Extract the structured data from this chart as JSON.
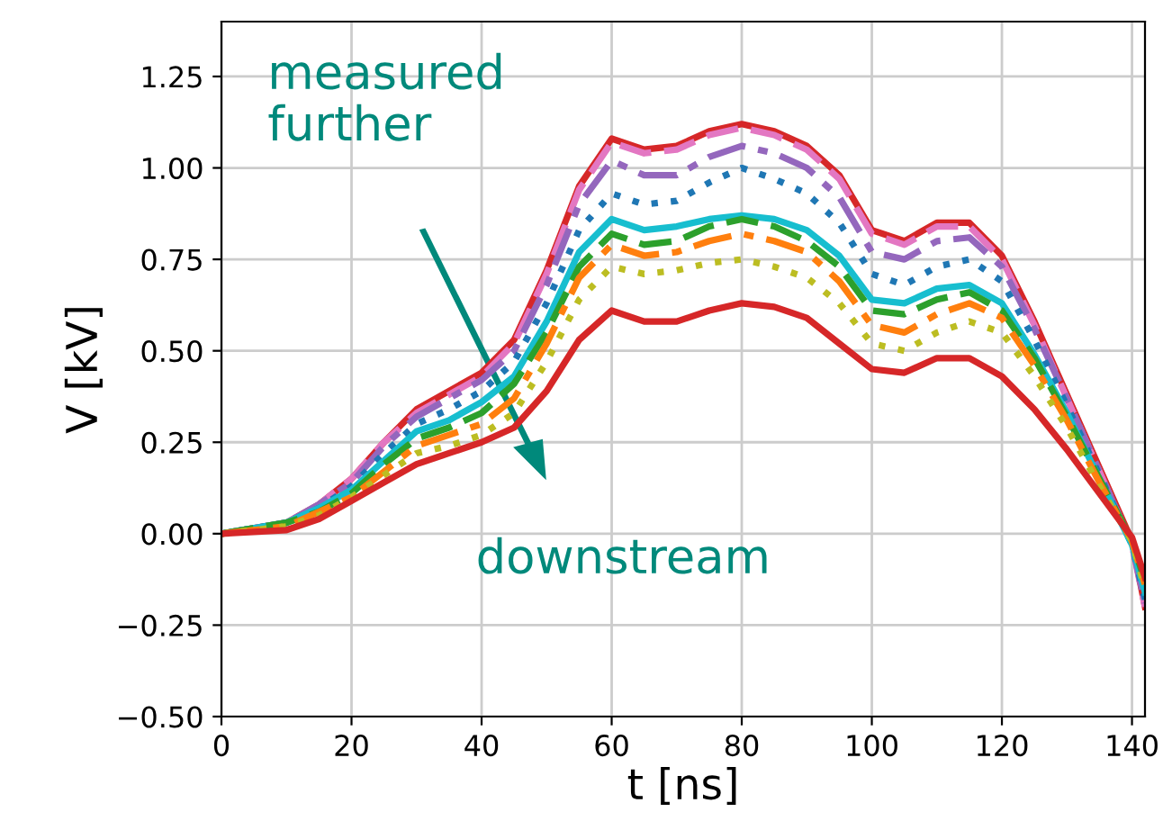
{
  "chart_data": {
    "type": "line",
    "xlabel": "t [ns]",
    "ylabel": "V [kV]",
    "x": [
      0,
      10,
      15,
      20,
      25,
      30,
      35,
      40,
      45,
      50,
      55,
      60,
      65,
      70,
      75,
      80,
      85,
      90,
      95,
      100,
      105,
      110,
      115,
      120,
      125,
      130,
      135,
      140,
      142
    ],
    "xlim": [
      0,
      142
    ],
    "xticks": [
      0,
      20,
      40,
      60,
      80,
      100,
      120,
      140
    ],
    "ylim": [
      -0.5,
      1.4
    ],
    "yticks": [
      {
        "value": -0.5,
        "label": "−0.50"
      },
      {
        "value": -0.25,
        "label": "−0.25"
      },
      {
        "value": 0,
        "label": "0.00"
      },
      {
        "value": 0.25,
        "label": "0.25"
      },
      {
        "value": 0.5,
        "label": "0.50"
      },
      {
        "value": 0.75,
        "label": "0.75"
      },
      {
        "value": 1.0,
        "label": "1.00"
      },
      {
        "value": 1.25,
        "label": "1.25"
      }
    ],
    "grid": true,
    "legend": false,
    "marker": "none",
    "annotations": [
      "measured\nfurther",
      "downstream"
    ],
    "series": [
      {
        "color": "#d62728",
        "line_style": "solid",
        "values": [
          0,
          0.03,
          0.08,
          0.15,
          0.25,
          0.34,
          0.39,
          0.44,
          0.53,
          0.72,
          0.95,
          1.08,
          1.05,
          1.06,
          1.1,
          1.12,
          1.1,
          1.06,
          0.98,
          0.83,
          0.8,
          0.85,
          0.85,
          0.76,
          0.58,
          0.38,
          0.18,
          -0.02,
          -0.2
        ]
      },
      {
        "color": "#e377c2",
        "line_style": "dashed",
        "values": [
          0,
          0.03,
          0.08,
          0.15,
          0.25,
          0.33,
          0.38,
          0.43,
          0.52,
          0.71,
          0.94,
          1.07,
          1.04,
          1.05,
          1.09,
          1.11,
          1.09,
          1.05,
          0.97,
          0.82,
          0.79,
          0.84,
          0.84,
          0.75,
          0.57,
          0.37,
          0.17,
          -0.03,
          -0.2
        ]
      },
      {
        "color": "#9467bd",
        "line_style": "dashdot",
        "values": [
          0,
          0.03,
          0.08,
          0.14,
          0.24,
          0.32,
          0.37,
          0.42,
          0.5,
          0.68,
          0.9,
          1.02,
          0.98,
          0.98,
          1.03,
          1.06,
          1.04,
          1.0,
          0.92,
          0.77,
          0.75,
          0.8,
          0.81,
          0.73,
          0.56,
          0.37,
          0.17,
          -0.03,
          -0.19
        ]
      },
      {
        "color": "#1f77b4",
        "line_style": "dotted",
        "values": [
          0,
          0.03,
          0.07,
          0.13,
          0.22,
          0.3,
          0.34,
          0.39,
          0.47,
          0.63,
          0.83,
          0.93,
          0.9,
          0.91,
          0.96,
          1.0,
          0.97,
          0.93,
          0.85,
          0.71,
          0.68,
          0.73,
          0.75,
          0.69,
          0.53,
          0.35,
          0.16,
          -0.03,
          -0.18
        ]
      },
      {
        "color": "#17becf",
        "line_style": "solid",
        "values": [
          0,
          0.03,
          0.07,
          0.12,
          0.2,
          0.28,
          0.31,
          0.36,
          0.43,
          0.58,
          0.77,
          0.86,
          0.83,
          0.84,
          0.86,
          0.87,
          0.86,
          0.83,
          0.76,
          0.64,
          0.63,
          0.67,
          0.68,
          0.63,
          0.49,
          0.33,
          0.15,
          -0.03,
          -0.16
        ]
      },
      {
        "color": "#2ca02c",
        "line_style": "dashed",
        "values": [
          0,
          0.03,
          0.06,
          0.11,
          0.19,
          0.26,
          0.29,
          0.33,
          0.41,
          0.55,
          0.73,
          0.82,
          0.79,
          0.8,
          0.84,
          0.86,
          0.84,
          0.8,
          0.73,
          0.61,
          0.6,
          0.64,
          0.66,
          0.61,
          0.48,
          0.32,
          0.15,
          -0.02,
          -0.13
        ]
      },
      {
        "color": "#ff7f0e",
        "line_style": "dashdot",
        "values": [
          0,
          0.02,
          0.06,
          0.1,
          0.17,
          0.24,
          0.27,
          0.3,
          0.37,
          0.52,
          0.7,
          0.79,
          0.76,
          0.77,
          0.8,
          0.82,
          0.8,
          0.77,
          0.69,
          0.57,
          0.55,
          0.6,
          0.63,
          0.59,
          0.46,
          0.31,
          0.14,
          -0.02,
          -0.14
        ]
      },
      {
        "color": "#bcbd22",
        "line_style": "dotted",
        "values": [
          0,
          0.02,
          0.05,
          0.1,
          0.16,
          0.22,
          0.24,
          0.27,
          0.33,
          0.47,
          0.64,
          0.73,
          0.71,
          0.72,
          0.74,
          0.75,
          0.73,
          0.7,
          0.63,
          0.52,
          0.5,
          0.55,
          0.58,
          0.55,
          0.43,
          0.29,
          0.13,
          -0.02,
          -0.15
        ]
      },
      {
        "color": "#d62728",
        "line_style": "solid",
        "values": [
          0,
          0.01,
          0.04,
          0.09,
          0.14,
          0.19,
          0.22,
          0.25,
          0.29,
          0.39,
          0.53,
          0.61,
          0.58,
          0.58,
          0.61,
          0.63,
          0.62,
          0.59,
          0.52,
          0.45,
          0.44,
          0.48,
          0.48,
          0.43,
          0.34,
          0.23,
          0.11,
          -0.01,
          -0.12
        ]
      }
    ]
  }
}
